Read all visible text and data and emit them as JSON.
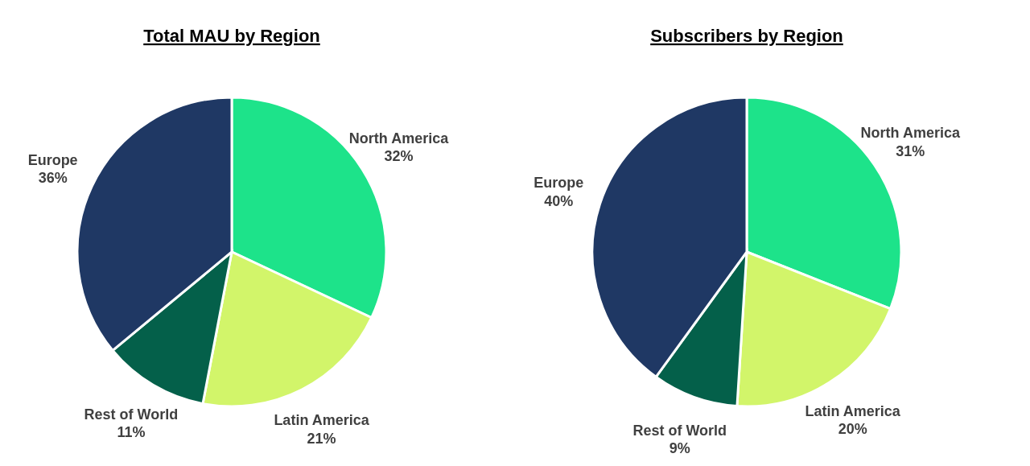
{
  "chart_data": [
    {
      "type": "pie",
      "title": "Total MAU by Region",
      "categories": [
        "North America",
        "Latin America",
        "Rest of World",
        "Europe"
      ],
      "values": [
        32,
        21,
        11,
        36
      ],
      "value_labels": [
        "32%",
        "21%",
        "11%",
        "36%"
      ],
      "colors": [
        "#1de38a",
        "#d2f56a",
        "#04604a",
        "#1f3864"
      ]
    },
    {
      "type": "pie",
      "title": "Subscribers by Region",
      "categories": [
        "North America",
        "Latin America",
        "Rest of World",
        "Europe"
      ],
      "values": [
        31,
        20,
        9,
        40
      ],
      "value_labels": [
        "31%",
        "20%",
        "9%",
        "40%"
      ],
      "colors": [
        "#1de38a",
        "#d2f56a",
        "#04604a",
        "#1f3864"
      ]
    }
  ]
}
